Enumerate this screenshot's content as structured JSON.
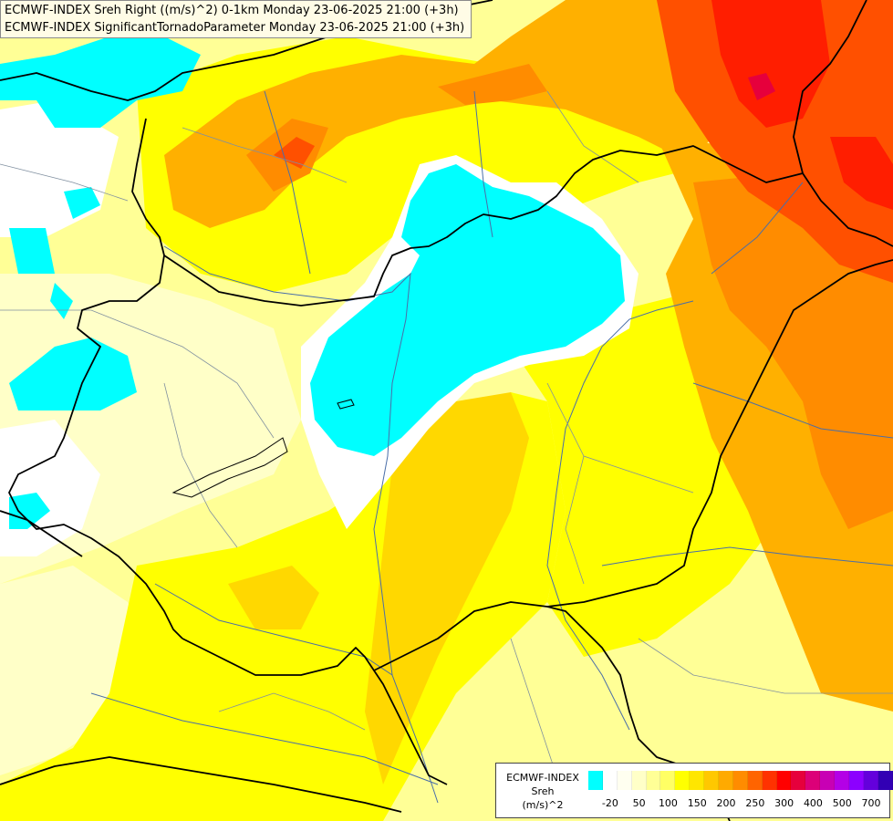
{
  "header": {
    "line1": "ECMWF-INDEX Sreh Right ((m/s)^2) 0-1km Monday 23-06-2025 21:00 (+3h)",
    "line2": "ECMWF-INDEX SignificantTornadoParameter Monday 23-06-2025 21:00 (+3h)"
  },
  "legend": {
    "title_line1": "ECMWF-INDEX",
    "title_line2": "Sreh",
    "title_line3": "(m/s)^2",
    "colors": [
      "#00ffff",
      "#ffffff",
      "#fffff0",
      "#ffffc8",
      "#ffff96",
      "#ffff64",
      "#ffff00",
      "#ffe600",
      "#ffc800",
      "#ffaa00",
      "#ff8c00",
      "#ff6400",
      "#ff3200",
      "#ff0000",
      "#e6003c",
      "#dc0078",
      "#c800b4",
      "#b400e6",
      "#8c00ff",
      "#6400dc",
      "#3200b4",
      "#00008c"
    ],
    "tick_labels": [
      "-20",
      "50",
      "100",
      "150",
      "200",
      "250",
      "300",
      "400",
      "500",
      "700"
    ]
  },
  "map": {
    "colors": {
      "cyan": "#00ffff",
      "white": "#ffffff",
      "pale": "#ffffc8",
      "light_yellow": "#ffff96",
      "yellow": "#ffff00",
      "gold": "#ffd800",
      "orange": "#ffb000",
      "dark_orange": "#ff8c00",
      "red_orange": "#ff5000",
      "red": "#ff1e00",
      "crimson": "#e6003c",
      "border": "#000000",
      "river": "#4a6ea8",
      "region": "#8090a0"
    }
  }
}
